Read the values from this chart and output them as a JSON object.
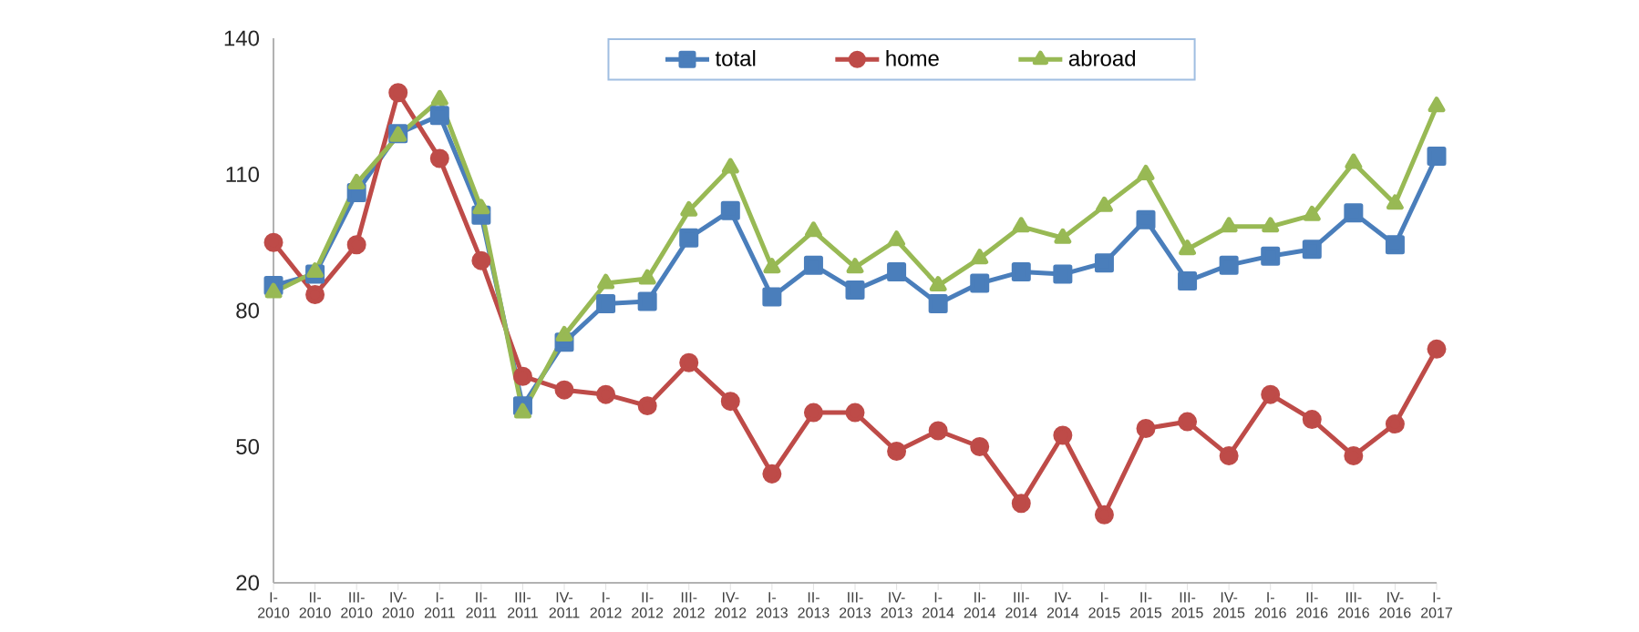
{
  "chart_data": {
    "type": "line",
    "categories": [
      "I-2010",
      "II-2010",
      "III-2010",
      "IV-2010",
      "I-2011",
      "II-2011",
      "III-2011",
      "IV-2011",
      "I-2012",
      "II-2012",
      "III-2012",
      "IV-2012",
      "I-2013",
      "II-2013",
      "III-2013",
      "IV-2013",
      "I-2014",
      "II-2014",
      "III-2014",
      "IV-2014",
      "I-2015",
      "II-2015",
      "III-2015",
      "IV-2015",
      "I-2016",
      "II-2016",
      "III-2016",
      "IV-2016",
      "I-2017"
    ],
    "series": [
      {
        "name": "total",
        "color": "#4a7ebb",
        "marker": "square",
        "values": [
          85.5,
          88,
          106,
          119,
          123,
          101,
          59,
          73,
          81.5,
          82,
          96,
          102,
          83,
          90,
          84.5,
          88.5,
          81.5,
          86,
          88.5,
          88,
          90.5,
          100,
          86.5,
          90,
          92,
          93.5,
          101.5,
          94.5,
          114
        ]
      },
      {
        "name": "home",
        "color": "#be4b48",
        "marker": "circle",
        "values": [
          95,
          83.5,
          94.5,
          128,
          113.5,
          91,
          65.5,
          62.5,
          61.5,
          59,
          68.5,
          60,
          44,
          57.5,
          57.5,
          49,
          53.5,
          50,
          37.5,
          52.5,
          35,
          54,
          55.5,
          48,
          61.5,
          56,
          48,
          55,
          71.5
        ]
      },
      {
        "name": "abroad",
        "color": "#98b954",
        "marker": "triangle",
        "values": [
          84,
          88.5,
          108,
          118.5,
          126.5,
          102.5,
          57.5,
          74.5,
          86,
          87,
          102,
          111.5,
          89.5,
          97.5,
          89.5,
          95.5,
          85.5,
          91.5,
          98.5,
          96,
          103,
          110,
          93.5,
          98.5,
          98.5,
          101,
          112.5,
          103.5,
          125
        ]
      }
    ],
    "ylim": [
      20,
      140
    ],
    "yticks": [
      20,
      50,
      80,
      110,
      140
    ],
    "grid": false,
    "legend": "top",
    "line_style": "solid"
  }
}
